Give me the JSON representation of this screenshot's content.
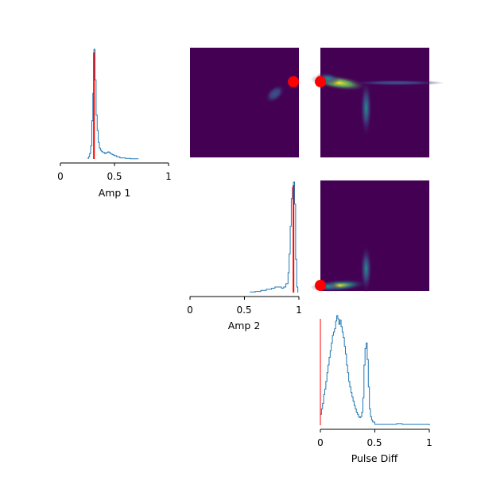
{
  "colors": {
    "background": "#ffffff",
    "histogram": "#1f77b4",
    "marker": "#ff0000",
    "heatmap_low": "#440154",
    "axis": "#000000"
  },
  "chart_data": [
    {
      "type": "histogram",
      "panel": "diag-1",
      "xlabel": "Amp 1",
      "xlim": [
        0,
        1
      ],
      "xticks": [
        0,
        0.5,
        1
      ],
      "xtick_labels": [
        "0",
        "0.5",
        "1"
      ],
      "marker_x": 0.31,
      "bins": [
        [
          0.25,
          0.005
        ],
        [
          0.26,
          0.02
        ],
        [
          0.27,
          0.05
        ],
        [
          0.28,
          0.12
        ],
        [
          0.29,
          0.35
        ],
        [
          0.3,
          0.6
        ],
        [
          0.31,
          1.0
        ],
        [
          0.32,
          0.72
        ],
        [
          0.33,
          0.4
        ],
        [
          0.34,
          0.26
        ],
        [
          0.35,
          0.15
        ],
        [
          0.36,
          0.1
        ],
        [
          0.37,
          0.08
        ],
        [
          0.38,
          0.07
        ],
        [
          0.39,
          0.06
        ],
        [
          0.4,
          0.06
        ],
        [
          0.41,
          0.05
        ],
        [
          0.42,
          0.055
        ],
        [
          0.43,
          0.06
        ],
        [
          0.44,
          0.065
        ],
        [
          0.45,
          0.06
        ],
        [
          0.46,
          0.05
        ],
        [
          0.47,
          0.045
        ],
        [
          0.48,
          0.04
        ],
        [
          0.49,
          0.035
        ],
        [
          0.5,
          0.03
        ],
        [
          0.52,
          0.02
        ],
        [
          0.55,
          0.01
        ],
        [
          0.6,
          0.005
        ],
        [
          0.65,
          0.002
        ],
        [
          0.72,
          0.0
        ]
      ]
    },
    {
      "type": "histogram",
      "panel": "diag-2",
      "xlabel": "Amp 2",
      "xlim": [
        0,
        1
      ],
      "xticks": [
        0,
        0.5,
        1
      ],
      "xtick_labels": [
        "0",
        "0.5",
        "1"
      ],
      "marker_x": 0.95,
      "bins": [
        [
          0.55,
          0.005
        ],
        [
          0.6,
          0.01
        ],
        [
          0.65,
          0.02
        ],
        [
          0.7,
          0.03
        ],
        [
          0.75,
          0.04
        ],
        [
          0.78,
          0.05
        ],
        [
          0.8,
          0.05
        ],
        [
          0.82,
          0.05
        ],
        [
          0.84,
          0.04
        ],
        [
          0.86,
          0.05
        ],
        [
          0.88,
          0.08
        ],
        [
          0.9,
          0.18
        ],
        [
          0.91,
          0.35
        ],
        [
          0.92,
          0.6
        ],
        [
          0.93,
          0.85
        ],
        [
          0.94,
          0.95
        ],
        [
          0.95,
          1.0
        ],
        [
          0.96,
          0.8
        ],
        [
          0.97,
          0.3
        ],
        [
          0.98,
          0.05
        ],
        [
          0.99,
          0.0
        ]
      ]
    },
    {
      "type": "histogram",
      "panel": "diag-3",
      "xlabel": "Pulse Diff",
      "xlim": [
        0,
        1
      ],
      "xticks": [
        0,
        0.5,
        1
      ],
      "xtick_labels": [
        "0",
        "0.5",
        "1"
      ],
      "marker_x": 0.0,
      "bins": [
        [
          0.0,
          0.1
        ],
        [
          0.01,
          0.15
        ],
        [
          0.02,
          0.2
        ],
        [
          0.03,
          0.28
        ],
        [
          0.04,
          0.33
        ],
        [
          0.05,
          0.4
        ],
        [
          0.06,
          0.48
        ],
        [
          0.07,
          0.55
        ],
        [
          0.08,
          0.62
        ],
        [
          0.09,
          0.68
        ],
        [
          0.1,
          0.75
        ],
        [
          0.11,
          0.82
        ],
        [
          0.12,
          0.85
        ],
        [
          0.13,
          0.88
        ],
        [
          0.14,
          0.95
        ],
        [
          0.15,
          1.0
        ],
        [
          0.16,
          0.97
        ],
        [
          0.17,
          0.92
        ],
        [
          0.18,
          0.96
        ],
        [
          0.19,
          0.9
        ],
        [
          0.2,
          0.85
        ],
        [
          0.21,
          0.8
        ],
        [
          0.22,
          0.72
        ],
        [
          0.23,
          0.65
        ],
        [
          0.24,
          0.55
        ],
        [
          0.25,
          0.48
        ],
        [
          0.26,
          0.4
        ],
        [
          0.27,
          0.35
        ],
        [
          0.28,
          0.3
        ],
        [
          0.29,
          0.26
        ],
        [
          0.3,
          0.22
        ],
        [
          0.31,
          0.18
        ],
        [
          0.32,
          0.15
        ],
        [
          0.33,
          0.12
        ],
        [
          0.34,
          0.1
        ],
        [
          0.35,
          0.08
        ],
        [
          0.36,
          0.07
        ],
        [
          0.37,
          0.08
        ],
        [
          0.38,
          0.12
        ],
        [
          0.39,
          0.25
        ],
        [
          0.4,
          0.55
        ],
        [
          0.41,
          0.7
        ],
        [
          0.42,
          0.75
        ],
        [
          0.43,
          0.6
        ],
        [
          0.44,
          0.35
        ],
        [
          0.45,
          0.15
        ],
        [
          0.46,
          0.08
        ],
        [
          0.47,
          0.05
        ],
        [
          0.48,
          0.03
        ],
        [
          0.5,
          0.01
        ],
        [
          0.55,
          0.01
        ],
        [
          0.6,
          0.01
        ],
        [
          0.7,
          0.015
        ],
        [
          0.75,
          0.01
        ],
        [
          0.85,
          0.01
        ],
        [
          0.9,
          0.01
        ],
        [
          0.95,
          0.01
        ],
        [
          1.0,
          0.0
        ]
      ]
    },
    {
      "type": "heatmap",
      "panel": "amp1-vs-amp2",
      "xlim": [
        0,
        1
      ],
      "ylim": [
        0,
        1
      ],
      "marker": [
        0.95,
        0.31
      ],
      "blobs": [
        {
          "cx": 0.78,
          "cy": 0.42,
          "sx": 0.05,
          "sy": 0.03,
          "angle": -40,
          "intensity": 0.15
        }
      ]
    },
    {
      "type": "heatmap",
      "panel": "amp1-vs-pulsediff",
      "xlim": [
        0,
        1
      ],
      "ylim": [
        0,
        1
      ],
      "marker": [
        0.0,
        0.31
      ],
      "blobs": [
        {
          "cx": 0.17,
          "cy": 0.32,
          "sx": 0.12,
          "sy": 0.03,
          "angle": 8,
          "intensity": 0.95
        },
        {
          "cx": 0.07,
          "cy": 0.28,
          "sx": 0.05,
          "sy": 0.025,
          "angle": 10,
          "intensity": 0.45
        },
        {
          "cx": 0.42,
          "cy": 0.55,
          "sx": 0.025,
          "sy": 0.12,
          "angle": 0,
          "intensity": 0.32
        },
        {
          "cx": 0.7,
          "cy": 0.32,
          "sx": 0.2,
          "sy": 0.012,
          "angle": 0,
          "intensity": 0.05
        }
      ]
    },
    {
      "type": "heatmap",
      "panel": "amp2-vs-pulsediff",
      "xlim": [
        0,
        1
      ],
      "ylim": [
        0,
        1
      ],
      "marker": [
        0.0,
        0.95
      ],
      "blobs": [
        {
          "cx": 0.17,
          "cy": 0.95,
          "sx": 0.12,
          "sy": 0.025,
          "angle": -4,
          "intensity": 0.9
        },
        {
          "cx": 0.07,
          "cy": 0.96,
          "sx": 0.05,
          "sy": 0.02,
          "angle": 0,
          "intensity": 0.4
        },
        {
          "cx": 0.42,
          "cy": 0.8,
          "sx": 0.025,
          "sy": 0.1,
          "angle": 0,
          "intensity": 0.3
        }
      ]
    }
  ]
}
